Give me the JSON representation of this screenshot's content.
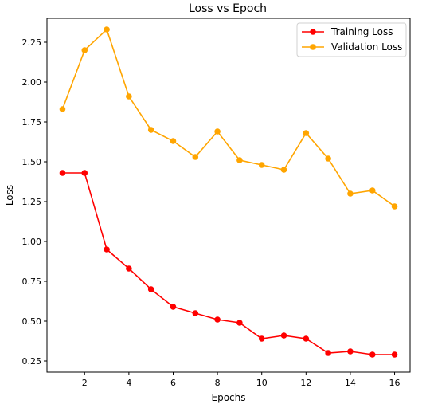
{
  "chart_data": {
    "type": "line",
    "title": "Loss vs Epoch",
    "xlabel": "Epochs",
    "ylabel": "Loss",
    "x": [
      1,
      2,
      3,
      4,
      5,
      6,
      7,
      8,
      9,
      10,
      11,
      12,
      13,
      14,
      15,
      16
    ],
    "xlim": [
      0.3,
      16.7
    ],
    "ylim": [
      0.18,
      2.4
    ],
    "xticks": [
      2,
      4,
      6,
      8,
      10,
      12,
      14,
      16
    ],
    "yticks": [
      0.25,
      0.5,
      0.75,
      1.0,
      1.25,
      1.5,
      1.75,
      2.0,
      2.25
    ],
    "xtick_labels": [
      "2",
      "4",
      "6",
      "8",
      "10",
      "12",
      "14",
      "16"
    ],
    "ytick_labels": [
      "0.25",
      "0.50",
      "0.75",
      "1.00",
      "1.25",
      "1.50",
      "1.75",
      "2.00",
      "2.25"
    ],
    "grid": false,
    "legend_position": "top-right",
    "series": [
      {
        "name": "Training Loss",
        "color": "#ff0000",
        "values": [
          1.43,
          1.43,
          0.95,
          0.83,
          0.7,
          0.59,
          0.55,
          0.51,
          0.49,
          0.39,
          0.41,
          0.39,
          0.3,
          0.31,
          0.29,
          0.29
        ]
      },
      {
        "name": "Validation Loss",
        "color": "#ffa500",
        "values": [
          1.83,
          2.2,
          2.33,
          1.91,
          1.7,
          1.63,
          1.53,
          1.69,
          1.51,
          1.48,
          1.45,
          1.68,
          1.52,
          1.3,
          1.32,
          1.22
        ]
      }
    ]
  }
}
